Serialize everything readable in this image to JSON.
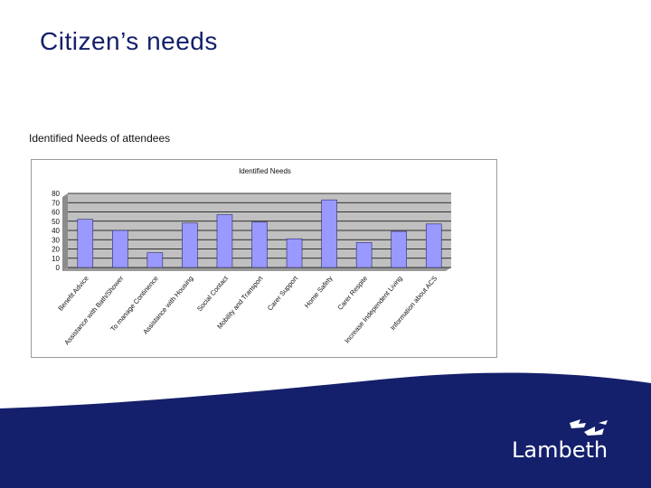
{
  "slide": {
    "title": "Citizen’s needs",
    "caption": "Identified Needs of attendees",
    "brand": "Lambeth"
  },
  "colors": {
    "title": "#14206b",
    "bar_fill": "#9999ff",
    "bar_stroke": "#2a2a6a",
    "plot_bg": "#c0c0c0",
    "footer": "#14206b"
  },
  "icons": [
    "lambeth-logo-mark"
  ],
  "chart_data": {
    "type": "bar",
    "title": "Identified Needs",
    "xlabel": "",
    "ylabel": "",
    "ylim": [
      0,
      80
    ],
    "yticks": [
      0,
      10,
      20,
      30,
      40,
      50,
      60,
      70,
      80
    ],
    "grid": true,
    "legend": "none",
    "categories": [
      "Benefit Advice",
      "Assistance with Bath/Shower",
      "To manage Continence",
      "Assistance with Housing",
      "Social Contact",
      "Mobility and Transport",
      "Carer Support",
      "Home Safety",
      "Carer Respite",
      "Increase Independent Living",
      "Information about ACS"
    ],
    "values": [
      52,
      40,
      16,
      48,
      57,
      49,
      31,
      73,
      27,
      39,
      47
    ]
  }
}
